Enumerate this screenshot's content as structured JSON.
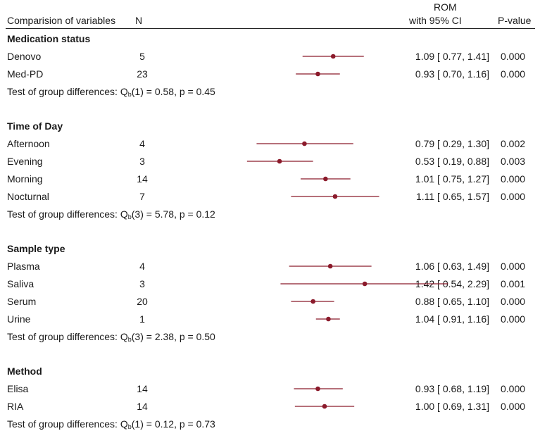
{
  "chart_data": {
    "type": "forest",
    "header": {
      "variable": "Comparision of variables",
      "n": "N",
      "estimate_line1": "ROM",
      "estimate_line2": "with 95% CI",
      "pvalue": "P-value"
    },
    "marker_color": "#8b1a2b",
    "groups": [
      {
        "name": "Medication status",
        "rows": [
          {
            "label": "Denovo",
            "n": "5",
            "est": 1.09,
            "lo": 0.77,
            "hi": 1.41,
            "ci_text": "1.09 [ 0.77, 1.41]",
            "p": "0.000"
          },
          {
            "label": "Med-PD",
            "n": "23",
            "est": 0.93,
            "lo": 0.7,
            "hi": 1.16,
            "ci_text": "0.93 [ 0.70, 1.16]",
            "p": "0.000"
          }
        ],
        "test_prefix": "Test of group differences: Q",
        "test_sub": "b",
        "test_suffix": "(1) = 0.58, p = 0.45"
      },
      {
        "name": "Time of Day",
        "rows": [
          {
            "label": "Afternoon",
            "n": "4",
            "est": 0.79,
            "lo": 0.29,
            "hi": 1.3,
            "ci_text": "0.79 [ 0.29, 1.30]",
            "p": "0.002"
          },
          {
            "label": "Evening",
            "n": "3",
            "est": 0.53,
            "lo": 0.19,
            "hi": 0.88,
            "ci_text": "0.53 [ 0.19, 0.88]",
            "p": "0.003"
          },
          {
            "label": "Morning",
            "n": "14",
            "est": 1.01,
            "lo": 0.75,
            "hi": 1.27,
            "ci_text": "1.01 [ 0.75, 1.27]",
            "p": "0.000"
          },
          {
            "label": "Nocturnal",
            "n": "7",
            "est": 1.11,
            "lo": 0.65,
            "hi": 1.57,
            "ci_text": "1.11 [ 0.65, 1.57]",
            "p": "0.000"
          }
        ],
        "test_prefix": "Test of group differences: Q",
        "test_sub": "b",
        "test_suffix": "(3) = 5.78, p = 0.12"
      },
      {
        "name": "Sample type",
        "rows": [
          {
            "label": "Plasma",
            "n": "4",
            "est": 1.06,
            "lo": 0.63,
            "hi": 1.49,
            "ci_text": "1.06 [ 0.63, 1.49]",
            "p": "0.000"
          },
          {
            "label": "Saliva",
            "n": "3",
            "est": 1.42,
            "lo": 0.54,
            "hi": 2.29,
            "ci_text": "1.42 [ 0.54, 2.29]",
            "p": "0.001"
          },
          {
            "label": "Serum",
            "n": "20",
            "est": 0.88,
            "lo": 0.65,
            "hi": 1.1,
            "ci_text": "0.88 [ 0.65, 1.10]",
            "p": "0.000"
          },
          {
            "label": "Urine",
            "n": "1",
            "est": 1.04,
            "lo": 0.91,
            "hi": 1.16,
            "ci_text": "1.04 [ 0.91, 1.16]",
            "p": "0.000"
          }
        ],
        "test_prefix": "Test of group differences: Q",
        "test_sub": "b",
        "test_suffix": "(3) = 2.38, p = 0.50"
      },
      {
        "name": "Method",
        "rows": [
          {
            "label": "Elisa",
            "n": "14",
            "est": 0.93,
            "lo": 0.68,
            "hi": 1.19,
            "ci_text": "0.93 [ 0.68, 1.19]",
            "p": "0.000"
          },
          {
            "label": "RIA",
            "n": "14",
            "est": 1.0,
            "lo": 0.69,
            "hi": 1.31,
            "ci_text": "1.00 [ 0.69, 1.31]",
            "p": "0.000"
          }
        ],
        "test_prefix": "Test of group differences: Q",
        "test_sub": "b",
        "test_suffix": "(1) = 0.12, p = 0.73"
      }
    ]
  }
}
